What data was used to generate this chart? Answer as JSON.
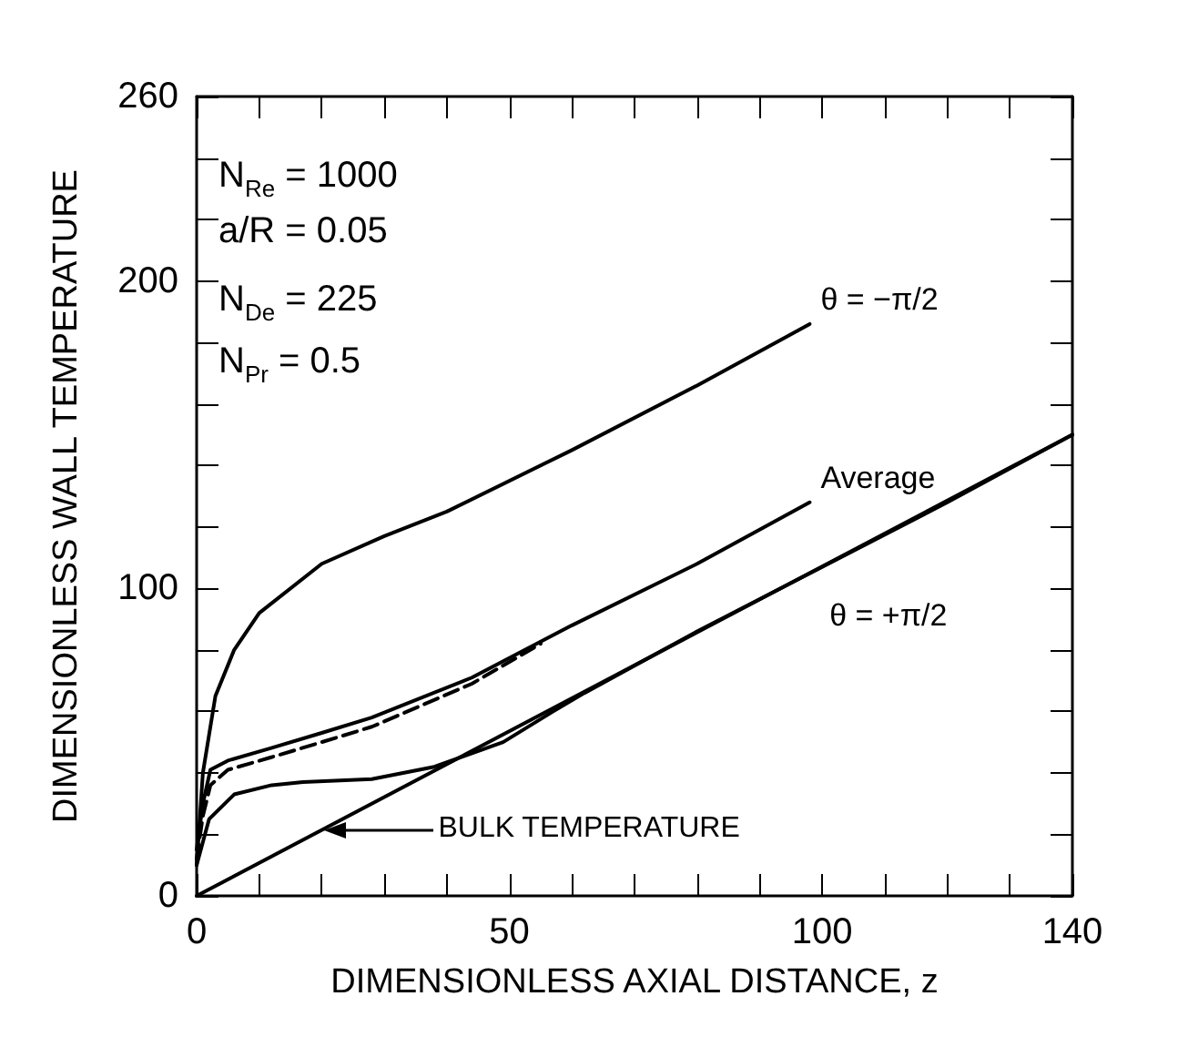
{
  "chart_data": {
    "type": "line",
    "xlabel": "DIMENSIONLESS AXIAL DISTANCE, z",
    "ylabel": "DIMENSIONLESS WALL TEMPERATURE",
    "xlim": [
      0,
      140
    ],
    "ylim": [
      0,
      260
    ],
    "xticks": [
      0,
      {
        "value": 10,
        "label": null
      },
      {
        "value": 20,
        "label": null
      },
      {
        "value": 30,
        "label": null
      },
      {
        "value": 40,
        "label": null
      },
      50,
      {
        "value": 60,
        "label": null
      },
      {
        "value": 70,
        "label": null
      },
      {
        "value": 80,
        "label": null
      },
      {
        "value": 90,
        "label": null
      },
      100,
      {
        "value": 110,
        "label": null
      },
      {
        "value": 120,
        "label": null
      },
      {
        "value": 130,
        "label": null
      },
      140
    ],
    "yticks": [
      0,
      {
        "value": 20,
        "label": null
      },
      {
        "value": 40,
        "label": null
      },
      {
        "value": 60,
        "label": null
      },
      {
        "value": 80,
        "label": null
      },
      100,
      {
        "value": 120,
        "label": null
      },
      {
        "value": 140,
        "label": null
      },
      {
        "value": 160,
        "label": null
      },
      {
        "value": 180,
        "label": null
      },
      200,
      {
        "value": 220,
        "label": null
      },
      {
        "value": 240,
        "label": null
      },
      260
    ],
    "series": [
      {
        "name": "θ = −π/2",
        "color": "#000000",
        "line_style": "solid",
        "x": [
          0,
          1,
          3,
          6,
          10,
          20,
          30,
          40,
          60,
          80,
          98
        ],
        "values": [
          10,
          40,
          65,
          80,
          92,
          108,
          117,
          125,
          145,
          166,
          186
        ]
      },
      {
        "name": "Average",
        "color": "#000000",
        "line_style": "solid",
        "x": [
          0,
          1,
          2.2,
          5,
          11.8,
          20,
          28,
          44,
          60,
          80,
          98
        ],
        "values": [
          15,
          30,
          41,
          44,
          48,
          53,
          58,
          71,
          88,
          108,
          128
        ]
      },
      {
        "color": "#000000",
        "line_style": "dashed",
        "x": [
          0,
          1,
          2.2,
          5,
          11.8,
          20,
          28,
          44,
          55
        ],
        "values": [
          12,
          26,
          36,
          41,
          45,
          50,
          55,
          69,
          82
        ]
      },
      {
        "name": "θ = +π/2",
        "color": "#000000",
        "line_style": "solid",
        "x": [
          0,
          2,
          6,
          12,
          17,
          28,
          38,
          49,
          57,
          62,
          80,
          100,
          120,
          140
        ],
        "values": [
          10,
          25,
          33,
          36,
          37,
          38,
          42,
          50,
          60,
          66,
          86,
          107,
          128,
          150
        ]
      },
      {
        "color": "#000000",
        "line_style": "solid",
        "x": [
          0,
          140
        ],
        "values": [
          0,
          150
        ]
      }
    ],
    "annotations": [
      "N$_{Re}$ = 1000",
      "a/R = 0.05",
      "N$_{De}$ = 225",
      "N$_{Pr}$ = 0.5",
      "BULK TEMPERATURE"
    ]
  }
}
